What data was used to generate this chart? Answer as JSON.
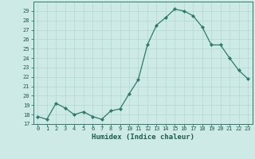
{
  "x": [
    0,
    1,
    2,
    3,
    4,
    5,
    6,
    7,
    8,
    9,
    10,
    11,
    12,
    13,
    14,
    15,
    16,
    17,
    18,
    19,
    20,
    21,
    22,
    23
  ],
  "y": [
    17.8,
    17.5,
    19.2,
    18.7,
    18.0,
    18.3,
    17.8,
    17.5,
    18.4,
    18.6,
    20.2,
    21.7,
    25.4,
    27.5,
    28.3,
    29.2,
    29.0,
    28.5,
    27.3,
    25.4,
    25.4,
    24.0,
    22.7,
    21.8
  ],
  "bg_color": "#ceeae7",
  "line_color": "#2d7a6a",
  "marker_color": "#2d7a6a",
  "grid_color": "#b0d8d4",
  "xlabel": "Humidex (Indice chaleur)",
  "ylim": [
    17,
    30
  ],
  "xlim": [
    -0.5,
    23.5
  ],
  "yticks": [
    17,
    18,
    19,
    20,
    21,
    22,
    23,
    24,
    25,
    26,
    27,
    28,
    29
  ],
  "xticks": [
    0,
    1,
    2,
    3,
    4,
    5,
    6,
    7,
    8,
    9,
    10,
    11,
    12,
    13,
    14,
    15,
    16,
    17,
    18,
    19,
    20,
    21,
    22,
    23
  ],
  "label_color": "#1a5c4e",
  "tick_color": "#1a5c4e",
  "spine_color": "#2d7a6a",
  "tick_fontsize": 5.0,
  "xlabel_fontsize": 6.5,
  "linewidth": 0.9,
  "markersize": 2.2
}
